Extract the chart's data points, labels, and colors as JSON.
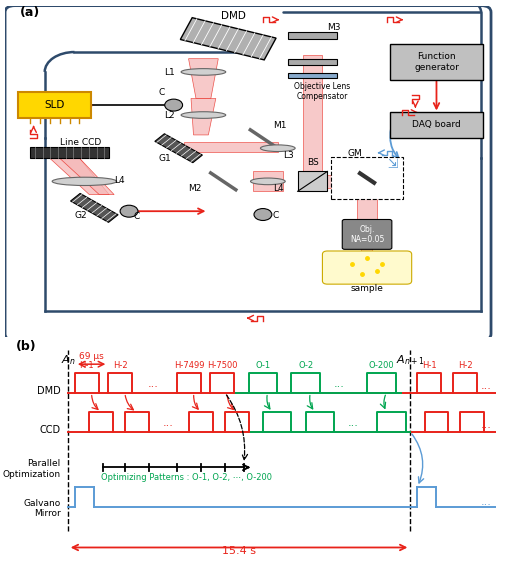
{
  "fig_width": 5.06,
  "fig_height": 5.62,
  "dpi": 100,
  "bg_color": "#ffffff",
  "panel_a_label": "(a)",
  "panel_b_label": "(b)",
  "timing": {
    "title_15s": "15.4 s",
    "title_69us": "69 μs",
    "dmd_label": "DMD",
    "ccd_label": "CCD",
    "parallel_label": "Parallel\nOptimization",
    "galvano_label": "Galvano\nMirror",
    "opt_patterns": "Optimizing Patterns : O-1, O-2, ⋯, O-200"
  },
  "colors": {
    "red": "#e8231a",
    "green": "#00a550",
    "blue": "#5b9bd5",
    "dark_blue": "#2e4a6b",
    "light_red_beam": "#f5b8b8",
    "yellow": "#FFD700",
    "gray_box": "#c0c0c0",
    "dark_gray": "#555555",
    "obj_gray": "#888888",
    "lens_gray": "#d0d0d0",
    "grating_dark": "#555555",
    "black": "#000000"
  }
}
